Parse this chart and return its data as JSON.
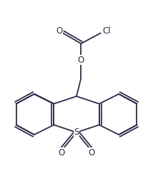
{
  "bg_color": "#ffffff",
  "line_color": "#2d2d4a",
  "lw": 1.3,
  "figsize": [
    2.14,
    2.47
  ],
  "dpi": 100,
  "xlim": [
    0,
    10
  ],
  "ylim": [
    0,
    11.5
  ]
}
